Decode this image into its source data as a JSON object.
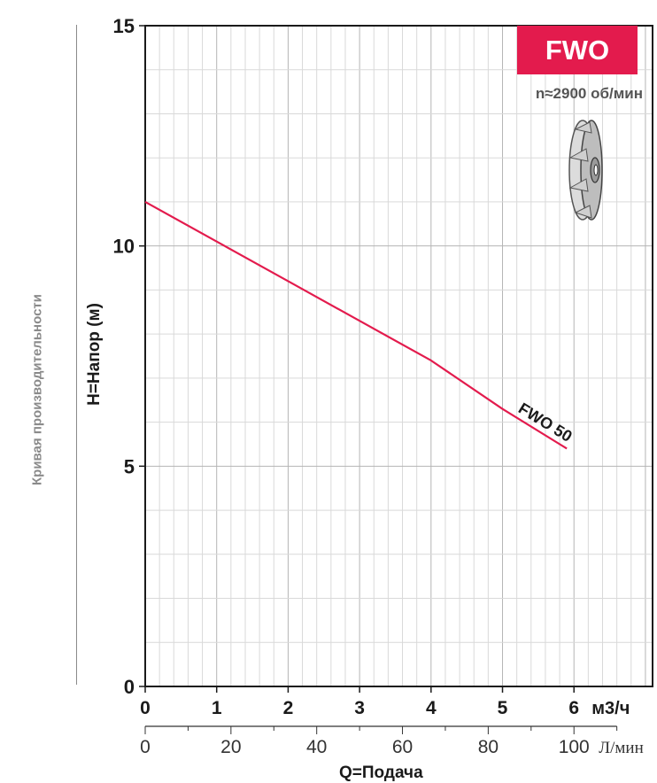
{
  "side_title": "Кривая производительности",
  "badge": "FWO",
  "speed": "n≈2900 об/мин",
  "icons": {
    "impeller": "impeller-icon"
  },
  "colors": {
    "accent": "#e31b4d",
    "curve": "#e31b4d",
    "grid": "#cfcfcf",
    "axis": "#1a1a1a"
  },
  "chart_data": {
    "type": "line",
    "ylabel": "H=Напор (м)",
    "xlabel": "Q=Подача",
    "x_unit": "м3/ч",
    "x2_unit": "Л/мин",
    "xlim": [
      0,
      7.1
    ],
    "ylim": [
      0,
      15
    ],
    "x_ticks": [
      "0",
      "1",
      "2",
      "3",
      "4",
      "5",
      "6"
    ],
    "x2_ticks": [
      "0",
      "20",
      "40",
      "60",
      "80",
      "100"
    ],
    "y_ticks": [
      "0",
      "5",
      "10",
      "15"
    ],
    "grid": true,
    "series": [
      {
        "name": "FWO 50",
        "x": [
          0,
          1,
          2,
          3,
          4,
          5,
          5.9
        ],
        "y": [
          11.0,
          10.1,
          9.2,
          8.3,
          7.4,
          6.3,
          5.4
        ]
      }
    ]
  }
}
